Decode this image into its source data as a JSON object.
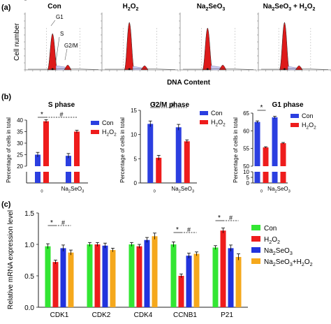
{
  "panel_labels": {
    "a": "(a)",
    "b": "(b)",
    "c": "(c)"
  },
  "colors": {
    "con": "#2b3fe0",
    "h2o2": "#ee1c1c",
    "na2seo3": "#2233dd",
    "combo": "#f5a81c",
    "green": "#33e633",
    "hist_fill": "#dd1a1a"
  },
  "panel_a": {
    "ylabel": "Cell number",
    "xlabel": "DNA Content",
    "titles": [
      "Con",
      "H2O2",
      "Na2SeO3",
      "Na2SeO3 + H2O2"
    ],
    "labels": {
      "g1": "G1",
      "s": "S",
      "g2m": "G2/M"
    }
  },
  "chart_data": [
    {
      "type": "bar",
      "title": "S phase",
      "ylabel": "Percentage of cells in total",
      "categories": [
        "0",
        "Na2SeO3"
      ],
      "series": [
        {
          "name": "Con",
          "values": [
            25,
            24.5
          ],
          "errors": [
            1.0,
            1.0
          ]
        },
        {
          "name": "H2O2",
          "values": [
            39.5,
            35
          ],
          "errors": [
            0.7,
            0.6
          ]
        }
      ],
      "ylim": [
        20,
        40
      ],
      "yticks": [
        0,
        20,
        25,
        30,
        35,
        40
      ],
      "axis_break": true,
      "annotations": [
        "*",
        "#"
      ]
    },
    {
      "type": "bar",
      "title": "G2/M phase",
      "ylabel": "Percentage of cells in total",
      "categories": [
        "0",
        "Na2SeO3"
      ],
      "series": [
        {
          "name": "Con",
          "values": [
            12.2,
            11.5
          ],
          "errors": [
            0.6,
            0.6
          ]
        },
        {
          "name": "H2O2",
          "values": [
            5.2,
            8.6
          ],
          "errors": [
            0.5,
            0.3
          ]
        }
      ],
      "ylim": [
        0,
        15
      ],
      "yticks": [
        0,
        5,
        10,
        15
      ],
      "axis_break": false,
      "annotations": [
        "*",
        "#"
      ]
    },
    {
      "type": "bar",
      "title": "G1 phase",
      "ylabel": "Percentage of cells in total",
      "categories": [
        "0",
        "Na2SeO3"
      ],
      "series": [
        {
          "name": "Con",
          "values": [
            62.5,
            63.8
          ],
          "errors": [
            0.3,
            0.3
          ]
        },
        {
          "name": "H2O2",
          "values": [
            55.3,
            56.5
          ],
          "errors": [
            0.2,
            0.2
          ]
        }
      ],
      "ylim": [
        50,
        65
      ],
      "yticks": [
        0,
        5,
        10,
        50,
        55,
        60,
        65
      ],
      "axis_break": true,
      "annotations": [
        "*"
      ]
    },
    {
      "type": "bar",
      "ylabel": "Relative mRNA expression level",
      "categories": [
        "CDK1",
        "CDK2",
        "CDK4",
        "CCNB1",
        "P21"
      ],
      "series": [
        {
          "name": "Con",
          "values": [
            0.97,
            1.0,
            1.0,
            1.0,
            0.95
          ],
          "errors": [
            0.04,
            0.03,
            0.03,
            0.04,
            0.03
          ]
        },
        {
          "name": "H2O2",
          "values": [
            0.72,
            1.0,
            0.97,
            0.5,
            1.22
          ],
          "errors": [
            0.03,
            0.03,
            0.03,
            0.03,
            0.04
          ]
        },
        {
          "name": "Na2SeO3",
          "values": [
            0.94,
            0.98,
            1.07,
            0.82,
            0.94
          ],
          "errors": [
            0.05,
            0.04,
            0.04,
            0.04,
            0.05
          ]
        },
        {
          "name": "Na2SeO3+H2O2",
          "values": [
            0.87,
            0.91,
            1.13,
            0.85,
            0.8
          ],
          "errors": [
            0.04,
            0.03,
            0.05,
            0.03,
            0.05
          ]
        }
      ],
      "ylim": [
        0,
        1.5
      ],
      "yticks": [
        "0.0",
        "0.5",
        "1.0",
        "1.5"
      ],
      "annotations": [
        "*",
        "#"
      ]
    }
  ]
}
